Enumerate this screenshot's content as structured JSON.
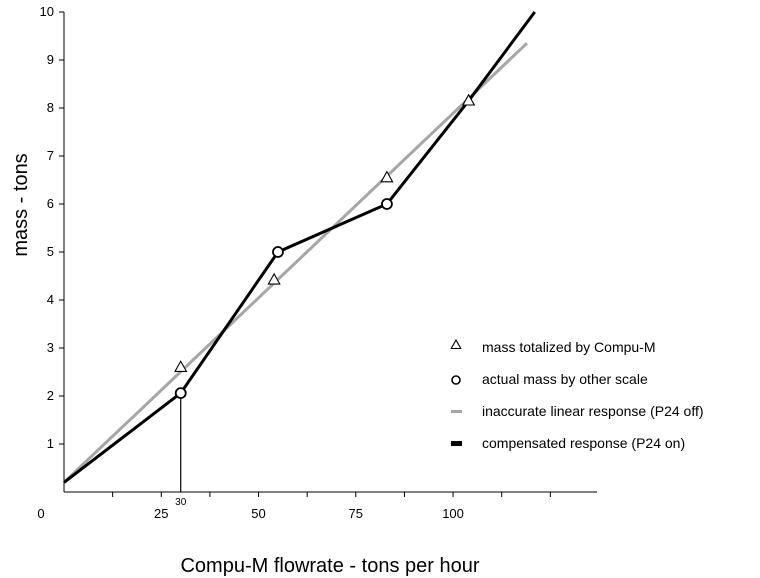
{
  "chart_data": {
    "type": "line",
    "xlabel": "Compu-M flowrate - tons per hour",
    "ylabel": "mass - tons",
    "xlim": [
      0,
      137
    ],
    "ylim": [
      0,
      10
    ],
    "x_ticks": [
      0,
      25,
      50,
      75,
      100
    ],
    "x_tick_labels": [
      "0",
      "25",
      "50",
      "75",
      "100"
    ],
    "x_minor_ticks": [
      12.5,
      37.5,
      62.5,
      87.5,
      112.5,
      125
    ],
    "y_ticks": [
      1,
      2,
      3,
      4,
      5,
      6,
      7,
      8,
      9,
      10
    ],
    "y_tick_labels": [
      "1",
      "2",
      "3",
      "4",
      "5",
      "6",
      "7",
      "8",
      "9",
      "10"
    ],
    "grid": false,
    "legend_position": "bottom-right",
    "annotations": [
      {
        "text": "30",
        "x": 30,
        "marker_to_y": 2.06
      }
    ],
    "series": [
      {
        "name": "mass totalized by Compu-M",
        "kind": "markers",
        "marker": "triangle",
        "color": "#000000",
        "x": [
          30,
          54,
          83,
          104
        ],
        "y": [
          2.6,
          4.42,
          6.55,
          8.15
        ]
      },
      {
        "name": "actual mass by other scale",
        "kind": "markers",
        "marker": "circle",
        "color": "#000000",
        "x": [
          30,
          55,
          83
        ],
        "y": [
          2.06,
          5.0,
          6.0
        ]
      },
      {
        "name": "inaccurate linear response (P24 off)",
        "kind": "line",
        "color": "#a6a6a6",
        "x": [
          0,
          119
        ],
        "y": [
          0.2,
          9.35
        ]
      },
      {
        "name": "compensated response (P24 on)",
        "kind": "line",
        "color": "#000000",
        "x": [
          0,
          30,
          55,
          83,
          104,
          121
        ],
        "y": [
          0.2,
          2.06,
          5.0,
          6.0,
          8.15,
          10.0
        ]
      }
    ]
  }
}
